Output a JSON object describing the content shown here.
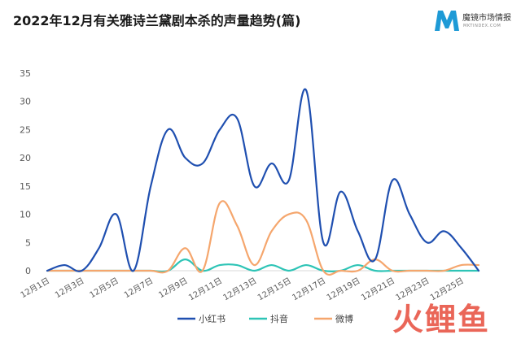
{
  "header": {
    "title": "2022年12月有关雅诗兰黛剧本杀的声量趋势(篇)"
  },
  "brand": {
    "name": "魔镜市场情报",
    "sub": "MKTINDEX.COM",
    "letter": "M",
    "color": "#1e9ad6"
  },
  "watermark": "火鲤鱼",
  "chart_data": {
    "type": "line",
    "title": "2022年12月有关雅诗兰黛剧本杀的声量趋势(篇)",
    "xlabel": "",
    "ylabel": "",
    "ylim": [
      0,
      35
    ],
    "yticks": [
      0,
      5,
      10,
      15,
      20,
      25,
      30,
      35
    ],
    "grid": false,
    "legend_position": "bottom",
    "x": [
      "12月1日",
      "12月2日",
      "12月3日",
      "12月4日",
      "12月5日",
      "12月6日",
      "12月7日",
      "12月8日",
      "12月9日",
      "12月10日",
      "12月11日",
      "12月12日",
      "12月13日",
      "12月14日",
      "12月15日",
      "12月16日",
      "12月17日",
      "12月18日",
      "12月19日",
      "12月20日",
      "12月21日",
      "12月22日",
      "12月23日",
      "12月24日",
      "12月25日",
      "12月26日"
    ],
    "xtick_labels": [
      "12月1日",
      "12月3日",
      "12月5日",
      "12月7日",
      "12月9日",
      "12月11日",
      "12月13日",
      "12月15日",
      "12月17日",
      "12月19日",
      "12月21日",
      "12月23日",
      "12月25日"
    ],
    "series": [
      {
        "name": "小红书",
        "color": "#1f4fb0",
        "values": [
          0,
          1,
          0,
          4,
          10,
          0,
          15,
          25,
          20,
          19,
          25,
          27,
          15,
          19,
          16,
          32,
          5,
          14,
          7,
          2,
          16,
          10,
          5,
          7,
          4,
          0
        ]
      },
      {
        "name": "抖音",
        "color": "#2ec4b6",
        "values": [
          0,
          0,
          0,
          0,
          0,
          0,
          0,
          0,
          2,
          0,
          1,
          1,
          0,
          1,
          0,
          1,
          0,
          0,
          1,
          0,
          0,
          0,
          0,
          0,
          0,
          0
        ]
      },
      {
        "name": "微博",
        "color": "#f5a66d",
        "values": [
          0,
          0,
          0,
          0,
          0,
          0,
          0,
          0,
          4,
          0,
          12,
          8,
          1,
          7,
          10,
          9,
          0,
          0,
          0,
          2,
          0,
          0,
          0,
          0,
          1,
          1
        ]
      }
    ]
  }
}
